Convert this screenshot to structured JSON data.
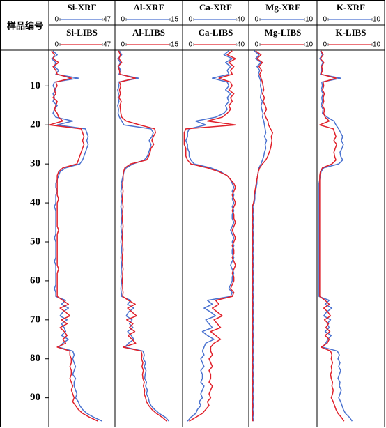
{
  "y_label": "样品编号",
  "samples": [
    1,
    2,
    3,
    4,
    5,
    6,
    7,
    8,
    9,
    10,
    11,
    12,
    13,
    14,
    15,
    16,
    17,
    18,
    19,
    20,
    21,
    22,
    23,
    24,
    25,
    26,
    27,
    28,
    29,
    30,
    31,
    32,
    33,
    34,
    35,
    36,
    37,
    38,
    39,
    40,
    41,
    42,
    43,
    44,
    45,
    46,
    47,
    48,
    49,
    50,
    51,
    52,
    53,
    54,
    55,
    56,
    57,
    58,
    59,
    60,
    61,
    62,
    63,
    64,
    65,
    66,
    67,
    68,
    69,
    70,
    71,
    72,
    73,
    74,
    75,
    76,
    77,
    78,
    79,
    80,
    81,
    82,
    83,
    84,
    85,
    86,
    87,
    88,
    89,
    90,
    91,
    92,
    93,
    94,
    95,
    96
  ],
  "ylim": [
    1,
    96.5
  ],
  "yticks": [
    10,
    20,
    30,
    40,
    50,
    60,
    70,
    80,
    90
  ],
  "chart_data": [
    {
      "type": "line",
      "series": [
        {
          "name": "Si-XRF",
          "color": "#4a72d0",
          "xlim": [
            0,
            47
          ],
          "xticks": [
            0,
            47
          ],
          "values": [
            3,
            6,
            2,
            5,
            4,
            7,
            5,
            21,
            4,
            3,
            5,
            3,
            4,
            3,
            6,
            4,
            3,
            5,
            17,
            6,
            26,
            27,
            28,
            27,
            28,
            27,
            26,
            25,
            24,
            22,
            12,
            8,
            7,
            6,
            5,
            5,
            6,
            5,
            5,
            5,
            4,
            5,
            5,
            5,
            5,
            5,
            5,
            5,
            4,
            5,
            5,
            5,
            5,
            5,
            4,
            5,
            5,
            5,
            5,
            5,
            5,
            4,
            5,
            5,
            12,
            9,
            14,
            10,
            8,
            13,
            9,
            11,
            12,
            9,
            14,
            10,
            7,
            17,
            18,
            17,
            18,
            19,
            18,
            17,
            19,
            18,
            18,
            19,
            20,
            19,
            21,
            22,
            24,
            27,
            32,
            38
          ]
        },
        {
          "name": "Si-LIBS",
          "color": "#e0202a",
          "xlim": [
            0,
            47
          ],
          "xticks": [
            0,
            47
          ],
          "values": [
            2,
            4,
            3,
            7,
            3,
            5,
            6,
            16,
            5,
            6,
            4,
            5,
            3,
            6,
            5,
            4,
            6,
            7,
            10,
            0.5,
            23,
            24,
            25,
            24,
            25,
            24,
            23,
            22,
            21,
            20,
            10,
            7,
            6,
            6,
            6,
            6,
            6,
            6,
            7,
            6,
            6,
            6,
            6,
            6,
            6,
            6,
            7,
            6,
            6,
            6,
            6,
            6,
            6,
            6,
            6,
            6,
            7,
            6,
            6,
            6,
            6,
            6,
            6,
            6,
            10,
            14,
            8,
            12,
            15,
            9,
            13,
            8,
            11,
            13,
            10,
            12,
            6,
            15,
            15,
            16,
            16,
            15,
            16,
            16,
            15,
            16,
            17,
            16,
            17,
            18,
            17,
            19,
            21,
            24,
            29,
            35
          ]
        }
      ]
    },
    {
      "type": "line",
      "series": [
        {
          "name": "Al-XRF",
          "color": "#4a72d0",
          "xlim": [
            0,
            15
          ],
          "xticks": [
            0,
            15
          ],
          "values": [
            1.0,
            1.5,
            0.6,
            1.2,
            0.8,
            1.3,
            0.9,
            5.2,
            0.7,
            0.9,
            0.6,
            0.8,
            0.7,
            0.9,
            0.6,
            0.8,
            0.7,
            1.0,
            1.5,
            2.0,
            8.0,
            8.5,
            8.2,
            7.6,
            8.0,
            7.8,
            7.5,
            7.2,
            6.5,
            4.0,
            2.5,
            2.0,
            1.8,
            1.6,
            1.4,
            1.5,
            1.3,
            1.4,
            1.6,
            1.4,
            1.3,
            1.5,
            1.4,
            1.4,
            1.5,
            1.3,
            1.4,
            1.6,
            1.4,
            1.3,
            1.4,
            1.5,
            1.4,
            1.3,
            1.4,
            1.5,
            1.4,
            1.4,
            1.3,
            1.5,
            1.4,
            1.3,
            1.4,
            1.5,
            3.5,
            2.8,
            4.2,
            3.0,
            2.5,
            3.8,
            3.2,
            4.0,
            2.8,
            3.6,
            4.2,
            3.0,
            2.2,
            6.2,
            6.5,
            6.3,
            6.8,
            6.5,
            6.9,
            6.7,
            6.6,
            7.0,
            6.8,
            7.2,
            7.0,
            7.4,
            7.6,
            8.0,
            8.8,
            9.8,
            11.2,
            12.0
          ]
        },
        {
          "name": "Al-LIBS",
          "color": "#e0202a",
          "xlim": [
            0,
            15
          ],
          "xticks": [
            0,
            15
          ],
          "values": [
            0.8,
            1.2,
            0.9,
            1.5,
            0.7,
            1.0,
            1.1,
            4.5,
            1.0,
            1.3,
            1.0,
            1.2,
            0.9,
            1.4,
            1.1,
            1.2,
            1.3,
            1.5,
            2.5,
            5.5,
            8.8,
            9.0,
            8.5,
            8.2,
            8.6,
            8.0,
            7.8,
            7.5,
            7.0,
            3.5,
            2.2,
            1.9,
            1.8,
            1.8,
            1.7,
            1.7,
            1.8,
            1.7,
            1.6,
            1.7,
            1.8,
            1.7,
            1.7,
            1.6,
            1.7,
            1.8,
            1.7,
            1.7,
            1.6,
            1.7,
            1.7,
            1.8,
            1.7,
            1.6,
            1.7,
            1.7,
            1.8,
            1.7,
            1.7,
            1.6,
            1.7,
            1.7,
            1.8,
            1.7,
            3.0,
            4.5,
            2.8,
            3.8,
            4.8,
            2.6,
            4.0,
            3.2,
            4.4,
            2.9,
            3.8,
            4.6,
            1.8,
            5.8,
            6.0,
            5.9,
            6.2,
            6.0,
            6.3,
            6.1,
            6.2,
            6.5,
            6.3,
            6.6,
            6.5,
            6.8,
            7.0,
            7.5,
            8.2,
            9.2,
            10.5,
            11.5
          ]
        }
      ]
    },
    {
      "type": "line",
      "series": [
        {
          "name": "Ca-XRF",
          "color": "#4a72d0",
          "xlim": [
            0,
            40
          ],
          "xticks": [
            0,
            40
          ],
          "values": [
            28,
            25,
            30,
            26,
            29,
            27,
            28,
            18,
            27,
            28,
            26,
            29,
            27,
            28,
            26,
            27,
            25,
            20,
            8,
            14,
            4,
            3,
            3,
            2,
            3,
            3,
            4,
            4,
            5,
            7,
            17,
            23,
            27,
            29,
            30,
            31,
            30,
            31,
            30,
            31,
            30,
            31,
            30,
            30,
            31,
            30,
            29,
            30,
            31,
            30,
            31,
            30,
            30,
            31,
            30,
            29,
            30,
            31,
            30,
            30,
            29,
            28,
            30,
            29,
            15,
            18,
            13,
            17,
            20,
            14,
            16,
            18,
            12,
            15,
            19,
            14,
            13,
            12,
            13,
            11,
            12,
            13,
            11,
            12,
            12,
            11,
            13,
            12,
            11,
            12,
            10,
            11,
            9,
            8,
            5,
            3
          ]
        },
        {
          "name": "Ca-LIBS",
          "color": "#e0202a",
          "xlim": [
            0,
            40
          ],
          "xticks": [
            0,
            40
          ],
          "values": [
            30,
            27,
            32,
            28,
            31,
            29,
            30,
            22,
            29,
            30,
            28,
            31,
            29,
            30,
            28,
            29,
            27,
            24,
            15,
            32,
            2,
            1,
            1,
            1,
            1,
            2,
            2,
            2,
            3,
            5,
            15,
            22,
            27,
            29,
            31,
            32,
            31,
            30,
            31,
            32,
            31,
            30,
            31,
            31,
            32,
            31,
            30,
            31,
            32,
            31,
            30,
            31,
            31,
            30,
            31,
            32,
            31,
            30,
            31,
            31,
            30,
            29,
            31,
            30,
            20,
            22,
            18,
            21,
            24,
            19,
            21,
            23,
            17,
            20,
            23,
            19,
            17,
            17,
            18,
            16,
            17,
            18,
            16,
            17,
            17,
            16,
            18,
            17,
            16,
            17,
            15,
            16,
            14,
            12,
            8,
            4
          ]
        }
      ]
    },
    {
      "type": "line",
      "series": [
        {
          "name": "Mg-XRF",
          "color": "#4a72d0",
          "xlim": [
            0,
            10
          ],
          "xticks": [
            0,
            10
          ],
          "values": [
            0.8,
            1.5,
            1.0,
            1.8,
            1.2,
            1.6,
            1.4,
            1.6,
            1.8,
            1.7,
            1.9,
            1.8,
            1.7,
            2.0,
            1.8,
            1.9,
            2.1,
            2.0,
            2.2,
            2.3,
            2.4,
            2.5,
            2.3,
            2.6,
            2.4,
            2.5,
            2.3,
            2.2,
            2.0,
            1.8,
            1.5,
            1.4,
            1.3,
            1.2,
            1.2,
            1.1,
            1.0,
            0.9,
            0.9,
            0.8,
            0.6,
            0.7,
            0.6,
            0.7,
            0.6,
            0.7,
            0.6,
            0.7,
            0.6,
            0.7,
            0.6,
            0.7,
            0.6,
            0.7,
            0.6,
            0.7,
            0.6,
            0.7,
            0.6,
            0.7,
            0.6,
            0.7,
            0.6,
            0.7,
            0.6,
            0.7,
            0.6,
            0.7,
            0.6,
            0.7,
            0.6,
            0.7,
            0.6,
            0.7,
            0.6,
            0.7,
            0.6,
            0.7,
            0.6,
            0.7,
            0.6,
            0.7,
            0.6,
            0.7,
            0.6,
            0.7,
            0.6,
            0.7,
            0.6,
            0.7,
            0.6,
            0.7,
            0.6,
            0.7,
            0.6,
            0.7
          ]
        },
        {
          "name": "Mg-LIBS",
          "color": "#e0202a",
          "xlim": [
            0,
            10
          ],
          "xticks": [
            0,
            10
          ],
          "values": [
            1.0,
            1.8,
            1.2,
            2.0,
            1.5,
            1.9,
            1.6,
            1.8,
            2.0,
            2.1,
            2.2,
            2.0,
            2.3,
            2.1,
            2.4,
            2.6,
            2.3,
            2.5,
            2.8,
            2.9,
            3.2,
            3.5,
            3.3,
            3.4,
            3.3,
            3.2,
            3.0,
            2.8,
            2.5,
            2.0,
            1.6,
            1.4,
            1.3,
            1.2,
            1.1,
            1.0,
            0.9,
            0.8,
            0.8,
            0.7,
            0.5,
            0.6,
            0.5,
            0.6,
            0.5,
            0.6,
            0.5,
            0.6,
            0.5,
            0.6,
            0.5,
            0.6,
            0.5,
            0.6,
            0.5,
            0.6,
            0.5,
            0.6,
            0.5,
            0.6,
            0.5,
            0.6,
            0.5,
            0.6,
            0.5,
            0.6,
            0.5,
            0.6,
            0.5,
            0.6,
            0.5,
            0.6,
            0.5,
            0.6,
            0.5,
            0.6,
            0.5,
            0.6,
            0.5,
            0.6,
            0.5,
            0.6,
            0.5,
            0.6,
            0.5,
            0.6,
            0.5,
            0.6,
            0.5,
            0.6,
            0.5,
            0.6,
            0.5,
            0.6,
            0.5,
            0.6
          ]
        }
      ]
    },
    {
      "type": "line",
      "series": [
        {
          "name": "K-XRF",
          "color": "#4a72d0",
          "xlim": [
            0,
            10
          ],
          "xticks": [
            0,
            10
          ],
          "values": [
            0.5,
            0.8,
            0.4,
            0.9,
            0.6,
            0.7,
            0.5,
            3.5,
            0.7,
            0.8,
            0.6,
            0.9,
            0.7,
            0.8,
            0.6,
            0.9,
            0.8,
            1.5,
            2.5,
            2.8,
            3.2,
            3.5,
            3.8,
            3.6,
            3.9,
            3.7,
            3.4,
            3.5,
            3.8,
            3.2,
            1.0,
            0.6,
            0.5,
            0.4,
            0.3,
            0.3,
            0.3,
            0.3,
            0.3,
            0.3,
            0.3,
            0.3,
            0.3,
            0.3,
            0.3,
            0.3,
            0.3,
            0.3,
            0.3,
            0.3,
            0.3,
            0.3,
            0.3,
            0.3,
            0.3,
            0.3,
            0.3,
            0.3,
            0.3,
            0.3,
            0.3,
            0.3,
            0.3,
            0.3,
            1.8,
            1.2,
            2.2,
            1.4,
            1.0,
            2.0,
            1.5,
            1.8,
            1.2,
            2.1,
            1.6,
            1.3,
            0.8,
            3.0,
            3.3,
            3.1,
            3.4,
            3.2,
            3.5,
            3.3,
            3.1,
            3.4,
            3.3,
            3.6,
            3.4,
            3.2,
            3.5,
            3.7,
            3.9,
            4.2,
            4.8,
            5.2
          ]
        },
        {
          "name": "K-LIBS",
          "color": "#e0202a",
          "xlim": [
            0,
            10
          ],
          "xticks": [
            0,
            10
          ],
          "values": [
            0.6,
            0.9,
            0.5,
            1.0,
            0.7,
            0.8,
            0.6,
            2.8,
            0.9,
            1.0,
            0.8,
            1.1,
            0.9,
            1.0,
            0.8,
            1.1,
            1.0,
            1.2,
            1.8,
            0.4,
            2.4,
            2.6,
            2.8,
            2.5,
            2.9,
            2.7,
            2.5,
            2.6,
            2.8,
            2.2,
            0.8,
            0.5,
            0.4,
            0.4,
            0.4,
            0.4,
            0.4,
            0.4,
            0.4,
            0.4,
            0.4,
            0.4,
            0.4,
            0.4,
            0.4,
            0.4,
            0.4,
            0.4,
            0.4,
            0.4,
            0.4,
            0.4,
            0.4,
            0.4,
            0.4,
            0.4,
            0.4,
            0.4,
            0.4,
            0.4,
            0.4,
            0.4,
            0.4,
            0.4,
            1.2,
            1.8,
            1.0,
            1.6,
            2.0,
            1.1,
            1.7,
            1.3,
            1.9,
            1.2,
            1.8,
            1.5,
            0.6,
            2.0,
            2.2,
            2.1,
            2.3,
            2.1,
            2.2,
            2.0,
            2.1,
            2.3,
            2.2,
            2.4,
            2.3,
            2.1,
            2.4,
            2.6,
            2.8,
            3.1,
            3.6,
            4.0
          ]
        }
      ]
    }
  ]
}
